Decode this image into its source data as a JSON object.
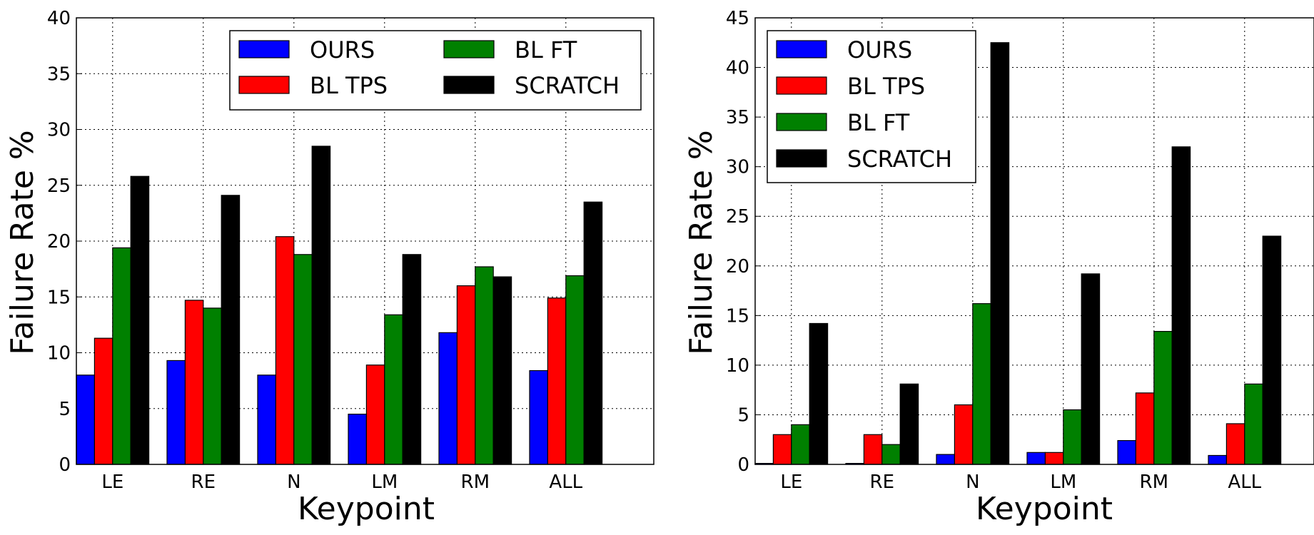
{
  "colors": {
    "OURS": "#0000ff",
    "BL TPS": "#ff0000",
    "BL FT": "#008000",
    "SCRATCH": "#000000"
  },
  "chart_data": [
    {
      "type": "bar",
      "title": "",
      "xlabel": "Keypoint",
      "ylabel": "Failure Rate %",
      "ylim": [
        0,
        40
      ],
      "yticks": [
        "0",
        "5",
        "10",
        "15",
        "20",
        "25",
        "30",
        "35",
        "40"
      ],
      "categories": [
        "LE",
        "RE",
        "N",
        "LM",
        "RM",
        "ALL"
      ],
      "grid": true,
      "legend": {
        "placement": "top-right",
        "columns": 2
      },
      "series": [
        {
          "name": "OURS",
          "values": [
            8.0,
            9.3,
            8.0,
            4.5,
            11.8,
            8.4
          ]
        },
        {
          "name": "BL TPS",
          "values": [
            11.3,
            14.7,
            20.4,
            8.9,
            16.0,
            14.9
          ]
        },
        {
          "name": "BL FT",
          "values": [
            19.4,
            14.0,
            18.8,
            13.4,
            17.7,
            16.9
          ]
        },
        {
          "name": "SCRATCH",
          "values": [
            25.8,
            24.1,
            28.5,
            18.8,
            16.8,
            23.5
          ]
        }
      ]
    },
    {
      "type": "bar",
      "title": "",
      "xlabel": "Keypoint",
      "ylabel": "Failure Rate %",
      "ylim": [
        0,
        45
      ],
      "yticks": [
        "0",
        "5",
        "10",
        "15",
        "20",
        "25",
        "30",
        "35",
        "40",
        "45"
      ],
      "categories": [
        "LE",
        "RE",
        "N",
        "LM",
        "RM",
        "ALL"
      ],
      "grid": true,
      "legend": {
        "placement": "top-left",
        "columns": 1
      },
      "series": [
        {
          "name": "OURS",
          "values": [
            0.1,
            0.1,
            1.0,
            1.2,
            2.4,
            0.9
          ]
        },
        {
          "name": "BL TPS",
          "values": [
            3.0,
            3.0,
            6.0,
            1.2,
            7.2,
            4.1
          ]
        },
        {
          "name": "BL FT",
          "values": [
            4.0,
            2.0,
            16.2,
            5.5,
            13.4,
            8.1
          ]
        },
        {
          "name": "SCRATCH",
          "values": [
            14.2,
            8.1,
            42.5,
            19.2,
            32.0,
            23.0
          ]
        }
      ]
    }
  ]
}
